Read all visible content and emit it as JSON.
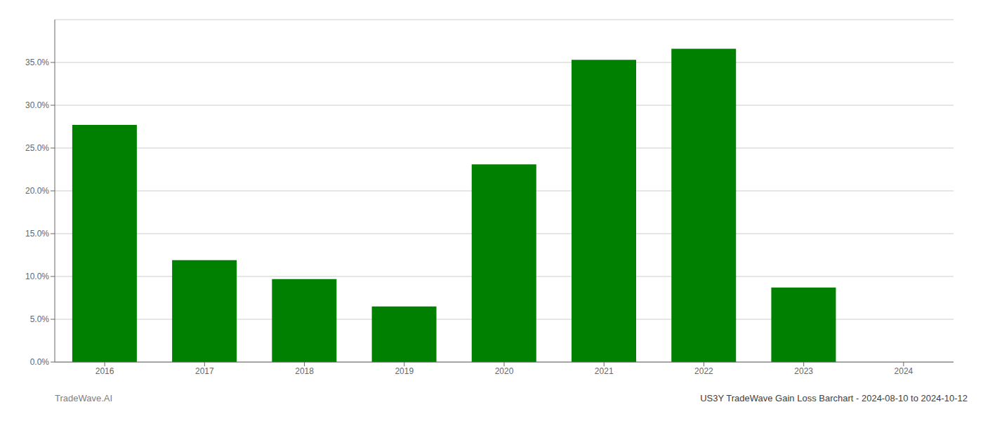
{
  "chart_data": {
    "type": "bar",
    "categories": [
      "2016",
      "2017",
      "2018",
      "2019",
      "2020",
      "2021",
      "2022",
      "2023",
      "2024"
    ],
    "values": [
      0.277,
      0.119,
      0.097,
      0.065,
      0.231,
      0.353,
      0.366,
      0.087,
      0.0
    ],
    "color": "#008000",
    "ylim": [
      0,
      0.4
    ],
    "yticks": [
      {
        "value": 0.0,
        "label": "0.0%"
      },
      {
        "value": 0.05,
        "label": "5.0%"
      },
      {
        "value": 0.1,
        "label": "10.0%"
      },
      {
        "value": 0.15,
        "label": "15.0%"
      },
      {
        "value": 0.2,
        "label": "20.0%"
      },
      {
        "value": 0.25,
        "label": "25.0%"
      },
      {
        "value": 0.3,
        "label": "30.0%"
      },
      {
        "value": 0.35,
        "label": "35.0%"
      }
    ],
    "grid": true,
    "annotations": [
      "TradeWave.AI",
      "US3Y TradeWave Gain Loss Barchart - 2024-08-10 to 2024-10-12"
    ]
  }
}
